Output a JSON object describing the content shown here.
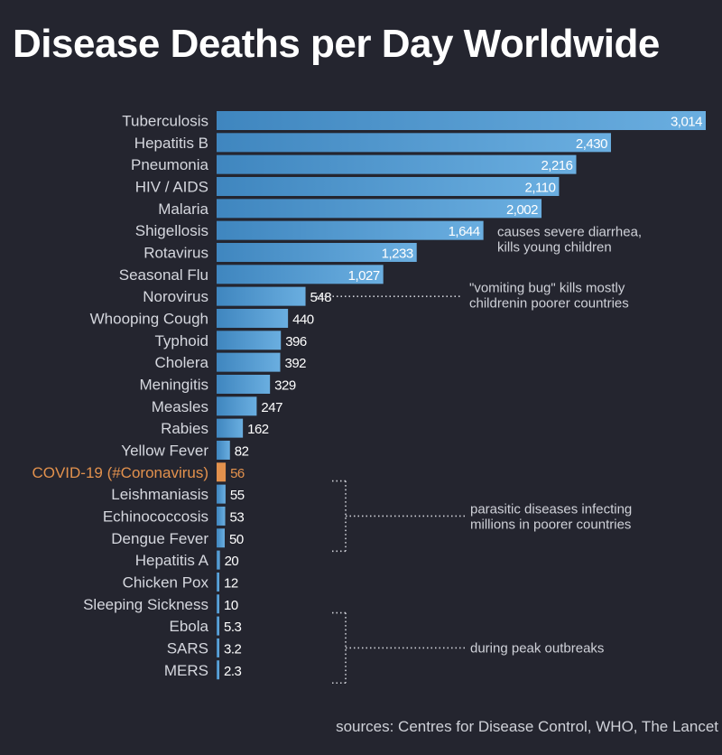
{
  "title": "Disease Deaths per Day Worldwide",
  "sources": "sources: Centres for Disease Control, WHO, The Lancet",
  "colors": {
    "background": "#24252f",
    "bar": "#3f86bf",
    "bar_light": "#6aaee0",
    "highlight": "#e2914d"
  },
  "chart_data": {
    "type": "bar",
    "orientation": "horizontal",
    "title": "Disease Deaths per Day Worldwide",
    "xlabel": "",
    "ylabel": "",
    "xlim": [
      0,
      3014
    ],
    "grid": false,
    "categories": [
      "Tuberculosis",
      "Hepatitis B",
      "Pneumonia",
      "HIV / AIDS",
      "Malaria",
      "Shigellosis",
      "Rotavirus",
      "Seasonal Flu",
      "Norovirus",
      "Whooping Cough",
      "Typhoid",
      "Cholera",
      "Meningitis",
      "Measles",
      "Rabies",
      "Yellow Fever",
      "COVID-19 (#Coronavirus)",
      "Leishmaniasis",
      "Echinococcosis",
      "Dengue Fever",
      "Hepatitis A",
      "Chicken Pox",
      "Sleeping Sickness",
      "Ebola",
      "SARS",
      "MERS"
    ],
    "values": [
      3014,
      2430,
      2216,
      2110,
      2002,
      1644,
      1233,
      1027,
      548,
      440,
      396,
      392,
      329,
      247,
      162,
      82,
      56,
      55,
      53,
      50,
      20,
      12,
      10,
      5.3,
      3.2,
      2.3
    ],
    "value_labels": [
      "3,014",
      "2,430",
      "2,216",
      "2,110",
      "2,002",
      "1,644",
      "1,233",
      "1,027",
      "548",
      "440",
      "396",
      "392",
      "329",
      "247",
      "162",
      "82",
      "56",
      "55",
      "53",
      "50",
      "20",
      "12",
      "10",
      "5.3",
      "3.2",
      "2.3"
    ],
    "highlight": "COVID-19 (#Coronavirus)",
    "annotations": [
      {
        "lines": [
          "causes severe diarrhea,",
          "kills young children"
        ],
        "target": "Shigellosis"
      },
      {
        "lines": [
          "\"vomiting bug\" kills mostly",
          "childrenin poorer countries"
        ],
        "target": "Norovirus"
      },
      {
        "lines": [
          "parasitic diseases infecting",
          "millions in poorer countries"
        ],
        "targets": [
          "Leishmaniasis",
          "Echinococcosis",
          "Dengue Fever"
        ]
      },
      {
        "lines": [
          "during peak outbreaks"
        ],
        "targets": [
          "Ebola",
          "SARS",
          "MERS"
        ]
      }
    ]
  }
}
